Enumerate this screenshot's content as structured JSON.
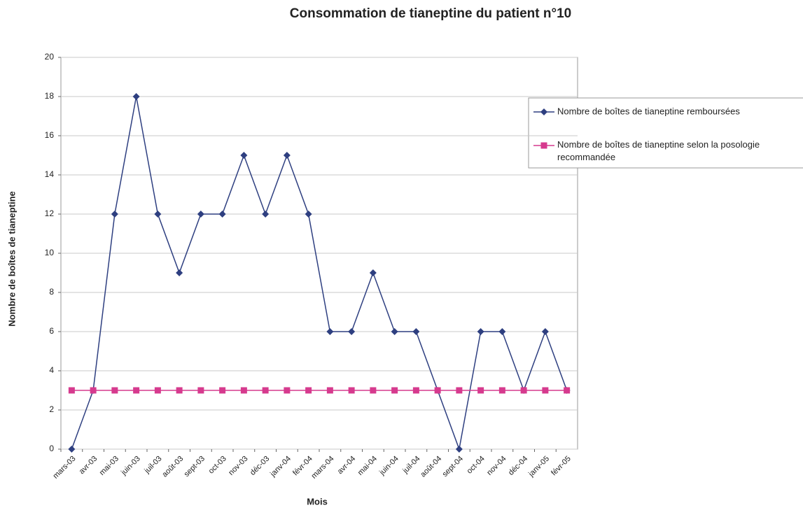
{
  "chart_data": {
    "type": "line",
    "title": "Consommation de tianeptine du patient n°10",
    "x_label": "Mois",
    "y_label": "Nombre de boîtes de tianeptine",
    "categories": [
      "mars-03",
      "avr-03",
      "mai-03",
      "juin-03",
      "juil-03",
      "août-03",
      "sept-03",
      "oct-03",
      "nov-03",
      "déc-03",
      "janv-04",
      "févr-04",
      "mars-04",
      "avr-04",
      "mai-04",
      "juin-04",
      "juil-04",
      "août-04",
      "sept-04",
      "oct-04",
      "nov-04",
      "déc-04",
      "janv-05",
      "févr-05"
    ],
    "series": [
      {
        "name": "Nombre de boîtes de tianeptine remboursées",
        "color": "#2e3f80",
        "marker": "diamond",
        "values": [
          0,
          3,
          12,
          18,
          12,
          9,
          12,
          12,
          15,
          12,
          15,
          12,
          6,
          6,
          9,
          6,
          6,
          3,
          0,
          6,
          6,
          3,
          6,
          3
        ]
      },
      {
        "name": "Nombre de boîtes de tianeptine selon la posologie recommandée",
        "color": "#d63a8e",
        "marker": "square",
        "values": [
          3,
          3,
          3,
          3,
          3,
          3,
          3,
          3,
          3,
          3,
          3,
          3,
          3,
          3,
          3,
          3,
          3,
          3,
          3,
          3,
          3,
          3,
          3,
          3
        ]
      }
    ],
    "ylim": [
      0,
      20
    ],
    "yticks": [
      0,
      2,
      4,
      6,
      8,
      10,
      12,
      14,
      16,
      18,
      20
    ],
    "grid": true,
    "legend": "right"
  }
}
